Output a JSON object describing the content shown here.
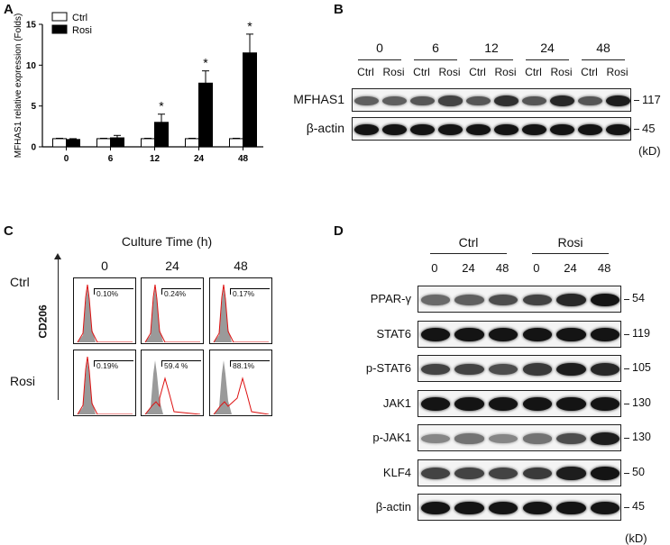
{
  "panels": {
    "a": {
      "label": "A"
    },
    "b": {
      "label": "B"
    },
    "c": {
      "label": "C"
    },
    "d": {
      "label": "D"
    }
  },
  "chart_data": {
    "type": "bar",
    "categories": [
      "0",
      "6",
      "12",
      "24",
      "48"
    ],
    "series": [
      {
        "name": "Ctrl",
        "values": [
          1.0,
          1.0,
          1.0,
          1.0,
          1.0
        ],
        "errors": [
          0.05,
          0.05,
          0.05,
          0.05,
          0.05
        ],
        "color": "#ffffff"
      },
      {
        "name": "Rosi",
        "values": [
          0.9,
          1.1,
          3.0,
          7.8,
          11.5
        ],
        "errors": [
          0.1,
          0.3,
          1.0,
          1.5,
          2.3
        ],
        "color": "#000000"
      }
    ],
    "significance": [
      "",
      "",
      "*",
      "*",
      "*"
    ],
    "ylabel": "MFHAS1 relative expression (Folds)",
    "xlabel": "",
    "ylim": [
      0,
      15
    ],
    "yticks": [
      0,
      5,
      10,
      15
    ],
    "legend": "top-left",
    "grid": false
  },
  "blot_b": {
    "timepoints": [
      "0",
      "6",
      "12",
      "24",
      "48"
    ],
    "lane_labels": [
      "Ctrl",
      "Rosi",
      "Ctrl",
      "Rosi",
      "Ctrl",
      "Rosi",
      "Ctrl",
      "Rosi",
      "Ctrl",
      "Rosi"
    ],
    "rows": [
      {
        "name": "MFHAS1",
        "mw": "117",
        "intensity": [
          0.55,
          0.55,
          0.6,
          0.7,
          0.6,
          0.8,
          0.6,
          0.85,
          0.6,
          0.9
        ]
      },
      {
        "name": "β-actin",
        "mw": "45",
        "intensity": [
          0.95,
          0.95,
          0.95,
          0.95,
          0.95,
          0.95,
          0.95,
          0.95,
          0.95,
          0.95
        ]
      }
    ],
    "unit": "(kD)"
  },
  "flow_c": {
    "title": "Culture Time (h)",
    "columns": [
      "0",
      "24",
      "48"
    ],
    "rows": [
      "Ctrl",
      "Rosi"
    ],
    "axis_label": "CD206",
    "gates": [
      [
        "0.10%",
        "0.24%",
        "0.17%"
      ],
      [
        "0.19%",
        "59.4 %",
        "88.1%"
      ]
    ]
  },
  "blot_d": {
    "groups": [
      "Ctrl",
      "Rosi"
    ],
    "timepoints": [
      "0",
      "24",
      "48",
      "0",
      "24",
      "48"
    ],
    "rows": [
      {
        "name": "PPAR-γ",
        "mw": "54",
        "intensity": [
          0.5,
          0.55,
          0.65,
          0.7,
          0.85,
          0.95
        ]
      },
      {
        "name": "STAT6",
        "mw": "119",
        "intensity": [
          0.95,
          0.95,
          0.95,
          0.95,
          0.95,
          0.95
        ]
      },
      {
        "name": "p-STAT6",
        "mw": "105",
        "intensity": [
          0.7,
          0.7,
          0.65,
          0.75,
          0.9,
          0.85
        ]
      },
      {
        "name": "JAK1",
        "mw": "130",
        "intensity": [
          0.95,
          0.95,
          0.95,
          0.95,
          0.95,
          0.95
        ]
      },
      {
        "name": "p-JAK1",
        "mw": "130",
        "intensity": [
          0.35,
          0.45,
          0.35,
          0.45,
          0.65,
          0.9
        ]
      },
      {
        "name": "KLF4",
        "mw": "50",
        "intensity": [
          0.7,
          0.7,
          0.7,
          0.75,
          0.9,
          0.95
        ]
      },
      {
        "name": "β-actin",
        "mw": "45",
        "intensity": [
          0.95,
          0.95,
          0.95,
          0.95,
          0.95,
          0.95
        ]
      }
    ],
    "unit": "(kD)"
  }
}
